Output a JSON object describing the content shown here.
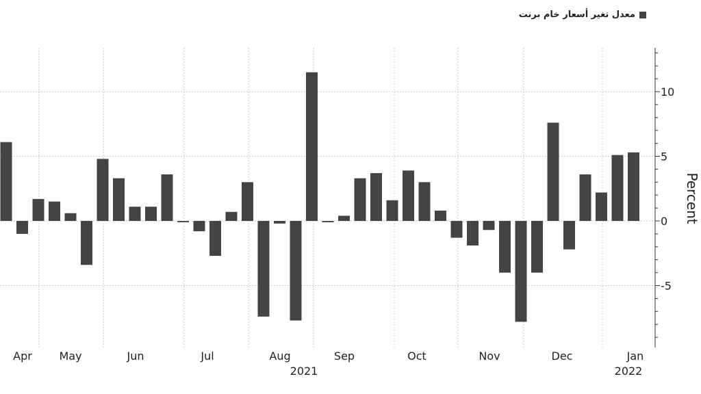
{
  "chart_data": {
    "type": "bar",
    "title": "",
    "xlabel": "",
    "ylabel": "Percent",
    "ylim": [
      -9.5,
      13.5
    ],
    "yticks": [
      10,
      5,
      0,
      -5
    ],
    "ytick_labels": [
      "10",
      "5",
      "0",
      "-5"
    ],
    "grid": true,
    "legend_position": "top-right",
    "bar_color": "#444444",
    "series": [
      {
        "name": "معدل تغير أسعار خام برنت",
        "values": [
          6.1,
          -1.0,
          1.7,
          1.5,
          0.6,
          -3.4,
          4.8,
          3.3,
          1.1,
          1.1,
          3.6,
          -0.1,
          -0.8,
          -2.7,
          0.7,
          3.0,
          -7.4,
          -0.2,
          -7.7,
          11.5,
          -0.1,
          0.4,
          3.3,
          3.7,
          1.6,
          3.9,
          3.0,
          0.8,
          -1.3,
          -1.9,
          -0.7,
          -4.0,
          -7.8,
          -4.0,
          7.6,
          -2.2,
          3.6,
          2.2,
          5.1,
          5.3
        ]
      }
    ],
    "month_labels": [
      "Apr",
      "May",
      "Jun",
      "Jul",
      "Aug",
      "Sep",
      "Oct",
      "Nov",
      "Dec",
      "Jan"
    ],
    "year_labels": [
      "2021",
      "2022"
    ]
  }
}
